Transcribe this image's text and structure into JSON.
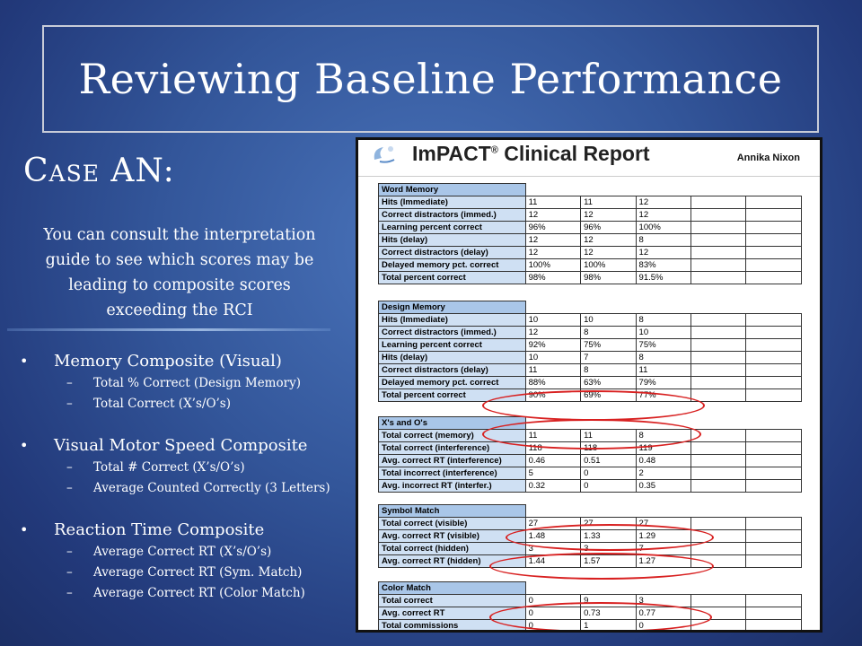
{
  "slide": {
    "title": "Reviewing Baseline Performance",
    "case_title": "Case AN:",
    "intro": "You can consult the interpretation guide to see which scores may be leading to composite scores exceeding the RCI",
    "bullets": [
      {
        "label": "Memory Composite (Visual)",
        "subs": [
          "Total % Correct (Design Memory)",
          "Total Correct (X’s/O’s)"
        ]
      },
      {
        "label": "Visual Motor Speed Composite",
        "subs": [
          "Total # Correct (X’s/O’s)",
          "Average Counted Correctly (3 Letters)"
        ]
      },
      {
        "label": "Reaction Time Composite",
        "subs": [
          "Average Correct RT (X’s/O’s)",
          "Average Correct RT (Sym. Match)",
          "Average Correct RT (Color Match)"
        ]
      }
    ]
  },
  "report": {
    "title": "ImPACT",
    "title_suffix": "Clinical Report",
    "reg": "®",
    "patient": "Annika Nixon",
    "sections": [
      {
        "name": "Word Memory",
        "rows": [
          {
            "label": "Hits (Immediate)",
            "values": [
              "11",
              "11",
              "12",
              "",
              ""
            ]
          },
          {
            "label": "Correct distractors (immed.)",
            "values": [
              "12",
              "12",
              "12",
              "",
              ""
            ]
          },
          {
            "label": "Learning percent correct",
            "values": [
              "96%",
              "96%",
              "100%",
              "",
              ""
            ]
          },
          {
            "label": "Hits (delay)",
            "values": [
              "12",
              "12",
              "8",
              "",
              ""
            ]
          },
          {
            "label": "Correct distractors (delay)",
            "values": [
              "12",
              "12",
              "12",
              "",
              ""
            ]
          },
          {
            "label": "Delayed memory pct. correct",
            "values": [
              "100%",
              "100%",
              "83%",
              "",
              ""
            ]
          },
          {
            "label": "Total percent correct",
            "values": [
              "98%",
              "98%",
              "91.5%",
              "",
              ""
            ]
          }
        ]
      },
      {
        "name": "Design Memory",
        "rows": [
          {
            "label": "Hits (Immediate)",
            "values": [
              "10",
              "10",
              "8",
              "",
              ""
            ]
          },
          {
            "label": "Correct distractors (immed.)",
            "values": [
              "12",
              "8",
              "10",
              "",
              ""
            ]
          },
          {
            "label": "Learning percent correct",
            "values": [
              "92%",
              "75%",
              "75%",
              "",
              ""
            ]
          },
          {
            "label": "Hits (delay)",
            "values": [
              "10",
              "7",
              "8",
              "",
              ""
            ]
          },
          {
            "label": "Correct distractors (delay)",
            "values": [
              "11",
              "8",
              "11",
              "",
              ""
            ]
          },
          {
            "label": "Delayed memory pct. correct",
            "values": [
              "88%",
              "63%",
              "79%",
              "",
              ""
            ]
          },
          {
            "label": "Total percent correct",
            "values": [
              "90%",
              "69%",
              "77%",
              "",
              ""
            ]
          }
        ]
      },
      {
        "name": "X's and O's",
        "rows": [
          {
            "label": "Total correct (memory)",
            "values": [
              "11",
              "11",
              "8",
              "",
              ""
            ]
          },
          {
            "label": "Total correct (interference)",
            "values": [
              "118",
              "118",
              "119",
              "",
              ""
            ]
          },
          {
            "label": "Avg. correct RT (interference)",
            "values": [
              "0.46",
              "0.51",
              "0.48",
              "",
              ""
            ]
          },
          {
            "label": "Total incorrect (interference)",
            "values": [
              "5",
              "0",
              "2",
              "",
              ""
            ]
          },
          {
            "label": "Avg. incorrect RT (interfer.)",
            "values": [
              "0.32",
              "0",
              "0.35",
              "",
              ""
            ]
          }
        ]
      },
      {
        "name": "Symbol Match",
        "rows": [
          {
            "label": "Total correct (visible)",
            "values": [
              "27",
              "27",
              "27",
              "",
              ""
            ]
          },
          {
            "label": "Avg. correct RT (visible)",
            "values": [
              "1.48",
              "1.33",
              "1.29",
              "",
              ""
            ]
          },
          {
            "label": "Total correct (hidden)",
            "values": [
              "3",
              "3",
              "7",
              "",
              ""
            ]
          },
          {
            "label": "Avg. correct RT (hidden)",
            "values": [
              "1.44",
              "1.57",
              "1.27",
              "",
              ""
            ]
          }
        ]
      },
      {
        "name": "Color Match",
        "rows": [
          {
            "label": "Total correct",
            "values": [
              "0",
              "9",
              "3",
              "",
              ""
            ]
          },
          {
            "label": "Avg. correct RT",
            "values": [
              "0",
              "0.73",
              "0.77",
              "",
              ""
            ]
          },
          {
            "label": "Total commissions",
            "values": [
              "0",
              "1",
              "0",
              "",
              ""
            ]
          }
        ]
      }
    ]
  },
  "colors": {
    "background": "#33569a",
    "highlight_circle": "#d82020",
    "table_label": "#cfe0f3",
    "table_section": "#a9c6e8"
  }
}
